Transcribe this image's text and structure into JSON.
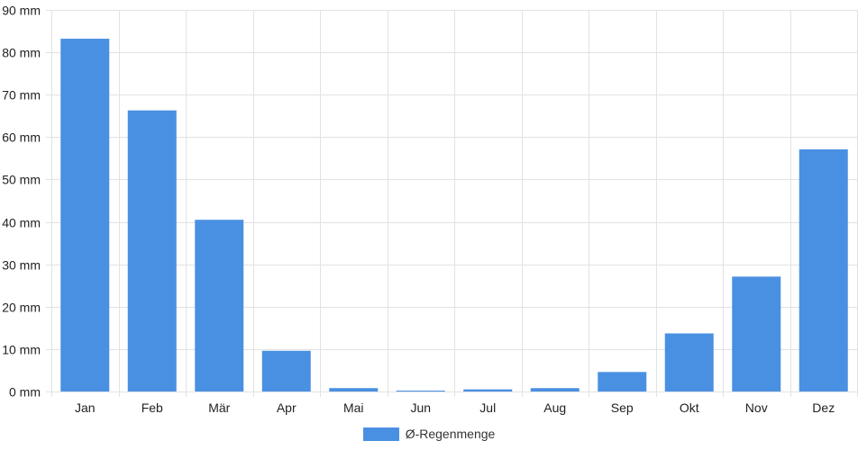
{
  "chart_data": {
    "type": "bar",
    "categories": [
      "Jan",
      "Feb",
      "Mär",
      "Apr",
      "Mai",
      "Jun",
      "Jul",
      "Aug",
      "Sep",
      "Okt",
      "Nov",
      "Dez"
    ],
    "series": [
      {
        "name": "Ø-Regenmenge",
        "color": "#4a90e2",
        "values": [
          83.2,
          66.3,
          40.5,
          9.6,
          0.8,
          0.1,
          0.5,
          0.8,
          4.6,
          13.7,
          27.1,
          57.1
        ]
      }
    ],
    "y_ticks": [
      "0 mm",
      "10 mm",
      "20 mm",
      "30 mm",
      "40 mm",
      "50 mm",
      "60 mm",
      "70 mm",
      "80 mm",
      "90 mm"
    ],
    "ylim": [
      0,
      90
    ],
    "y_unit": "mm",
    "grid": true,
    "legend_position": "bottom"
  }
}
